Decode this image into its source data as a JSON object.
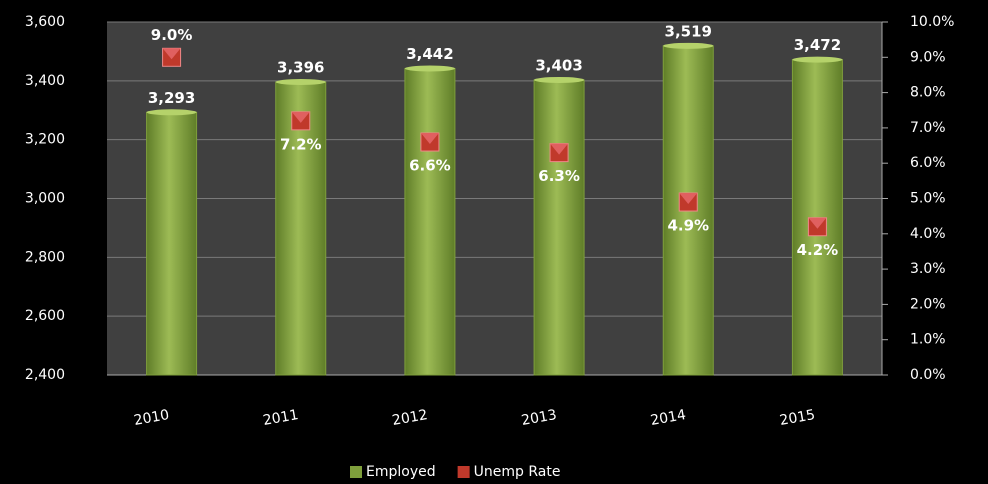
{
  "chart_data": {
    "type": "bar",
    "categories": [
      "2010",
      "2011",
      "2012",
      "2013",
      "2014",
      "2015"
    ],
    "series": [
      {
        "name": "Employed",
        "type": "bar",
        "color": "#7f9f3c",
        "values": [
          3293,
          3396,
          3442,
          3403,
          3519,
          3472
        ],
        "value_labels": [
          "3,293",
          "3,396",
          "3,442",
          "3,403",
          "3,519",
          "3,472"
        ]
      },
      {
        "name": "Unemp Rate",
        "type": "scatter",
        "axis": "y2",
        "color": "#c0392b",
        "values": [
          9.0,
          7.2,
          6.6,
          6.3,
          4.9,
          4.2
        ],
        "value_labels": [
          "9.0%",
          "7.2%",
          "6.6%",
          "6.3%",
          "4.9%",
          "4.2%"
        ]
      }
    ],
    "ylim": [
      2400,
      3600
    ],
    "yticks": [
      {
        "value": 2400,
        "label": "2,400"
      },
      {
        "value": 2600,
        "label": "2,600"
      },
      {
        "value": 2800,
        "label": "2,800"
      },
      {
        "value": 3000,
        "label": "3,000"
      },
      {
        "value": 3200,
        "label": "3,200"
      },
      {
        "value": 3400,
        "label": "3,400"
      },
      {
        "value": 3600,
        "label": "3,600"
      }
    ],
    "y2lim": [
      0,
      10
    ],
    "y2ticks": [
      {
        "value": 0,
        "label": "0.0%"
      },
      {
        "value": 1,
        "label": "1.0%"
      },
      {
        "value": 2,
        "label": "2.0%"
      },
      {
        "value": 3,
        "label": "3.0%"
      },
      {
        "value": 4,
        "label": "4.0%"
      },
      {
        "value": 5,
        "label": "5.0%"
      },
      {
        "value": 6,
        "label": "6.0%"
      },
      {
        "value": 7,
        "label": "7.0%"
      },
      {
        "value": 8,
        "label": "8.0%"
      },
      {
        "value": 9,
        "label": "9.0%"
      },
      {
        "value": 10,
        "label": "10.0%"
      }
    ],
    "grid": true,
    "legend": "bottom"
  }
}
